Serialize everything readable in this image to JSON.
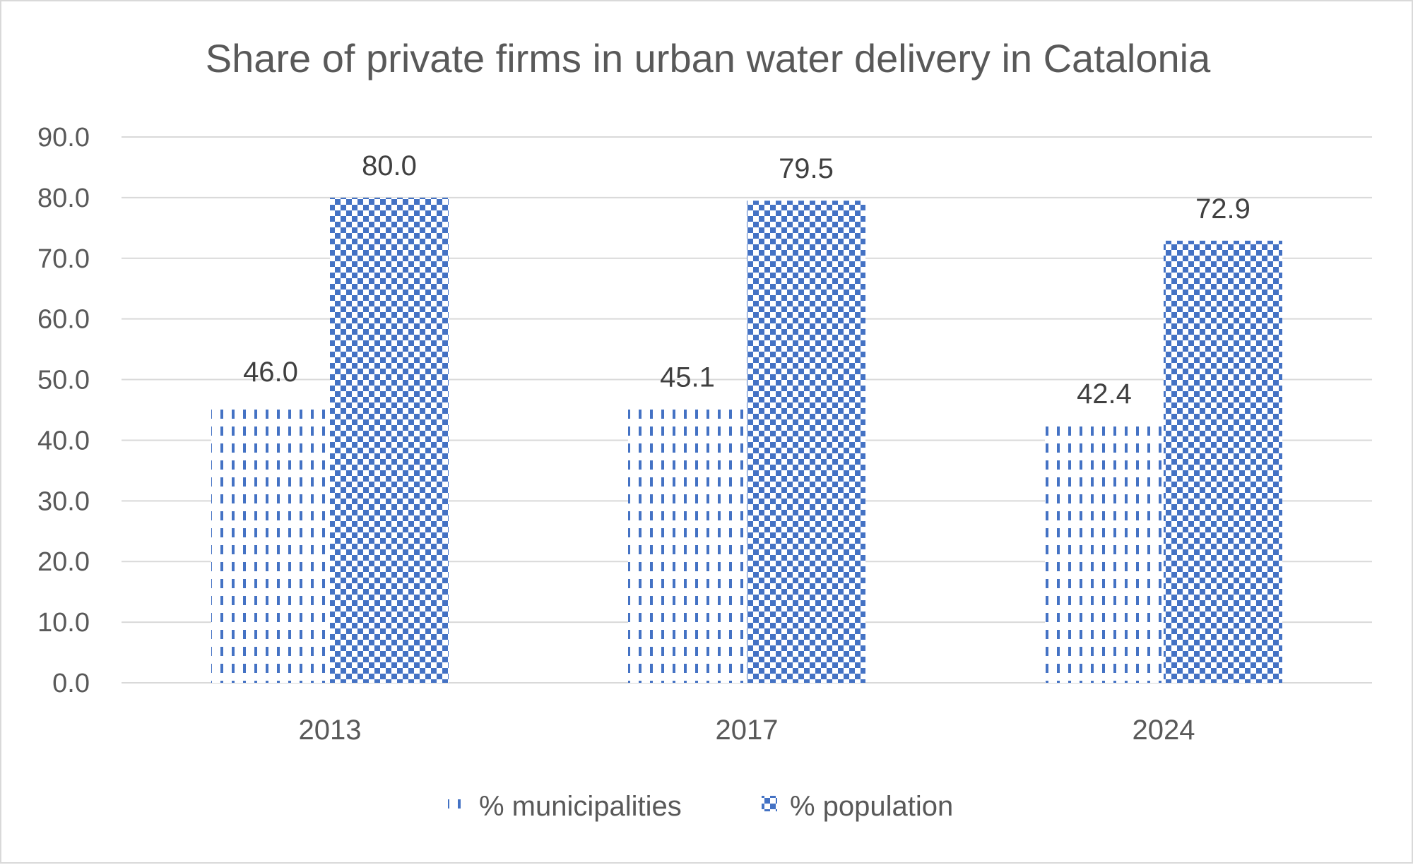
{
  "colors": {
    "series_main": "#4472c4",
    "grid": "#d9d9d9",
    "text": "#595959",
    "label_text": "#404040"
  },
  "chart_data": {
    "type": "bar",
    "title": "Share of private firms in urban water delivery in Catalonia",
    "categories": [
      "2013",
      "2017",
      "2024"
    ],
    "series": [
      {
        "name": "% municipalities",
        "pattern": "dashed-vertical",
        "values": [
          46.0,
          45.1,
          42.4
        ]
      },
      {
        "name": "% population",
        "pattern": "checkerboard",
        "values": [
          80.0,
          79.5,
          72.9
        ]
      }
    ],
    "ylim": [
      0,
      90
    ],
    "yticks": [
      "0.0",
      "10.0",
      "20.0",
      "30.0",
      "40.0",
      "50.0",
      "60.0",
      "70.0",
      "80.0",
      "90.0"
    ],
    "data_labels": true,
    "grid": true,
    "legend_position": "bottom",
    "xlabel": "",
    "ylabel": ""
  }
}
